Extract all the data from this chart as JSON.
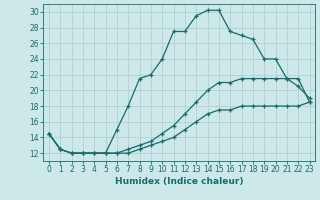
{
  "xlabel": "Humidex (Indice chaleur)",
  "bg_color": "#cce8e8",
  "grid_color": "#b0d0d0",
  "line_color": "#1a6b6b",
  "xlim": [
    -0.5,
    23.5
  ],
  "ylim": [
    11,
    31
  ],
  "xticks": [
    0,
    1,
    2,
    3,
    4,
    5,
    6,
    7,
    8,
    9,
    10,
    11,
    12,
    13,
    14,
    15,
    16,
    17,
    18,
    19,
    20,
    21,
    22,
    23
  ],
  "yticks": [
    12,
    14,
    16,
    18,
    20,
    22,
    24,
    26,
    28,
    30
  ],
  "line1_x": [
    0,
    1,
    2,
    3,
    4,
    5,
    6,
    7,
    8,
    9,
    10,
    11,
    12,
    13,
    14,
    15,
    16,
    17,
    18,
    19,
    20,
    21,
    22,
    23
  ],
  "line1_y": [
    14.5,
    12.5,
    12,
    12,
    12,
    12,
    15,
    18,
    21.5,
    22,
    24,
    27.5,
    27.5,
    29.5,
    30.2,
    30.2,
    27.5,
    27,
    26.5,
    24,
    24,
    21.5,
    21.5,
    18.5
  ],
  "line2_x": [
    0,
    1,
    2,
    3,
    4,
    5,
    6,
    7,
    8,
    9,
    10,
    11,
    12,
    13,
    14,
    15,
    16,
    17,
    18,
    19,
    20,
    21,
    22,
    23
  ],
  "line2_y": [
    14.5,
    12.5,
    12,
    12,
    12,
    12,
    12,
    12.5,
    13,
    13.5,
    14.5,
    15.5,
    17,
    18.5,
    20,
    21,
    21,
    21.5,
    21.5,
    21.5,
    21.5,
    21.5,
    20.5,
    19
  ],
  "line3_x": [
    0,
    1,
    2,
    3,
    4,
    5,
    6,
    7,
    8,
    9,
    10,
    11,
    12,
    13,
    14,
    15,
    16,
    17,
    18,
    19,
    20,
    21,
    22,
    23
  ],
  "line3_y": [
    14.5,
    12.5,
    12,
    12,
    12,
    12,
    12,
    12,
    12.5,
    13,
    13.5,
    14,
    15,
    16,
    17,
    17.5,
    17.5,
    18,
    18,
    18,
    18,
    18,
    18,
    18.5
  ],
  "tick_fontsize": 5.5,
  "xlabel_fontsize": 6.5
}
